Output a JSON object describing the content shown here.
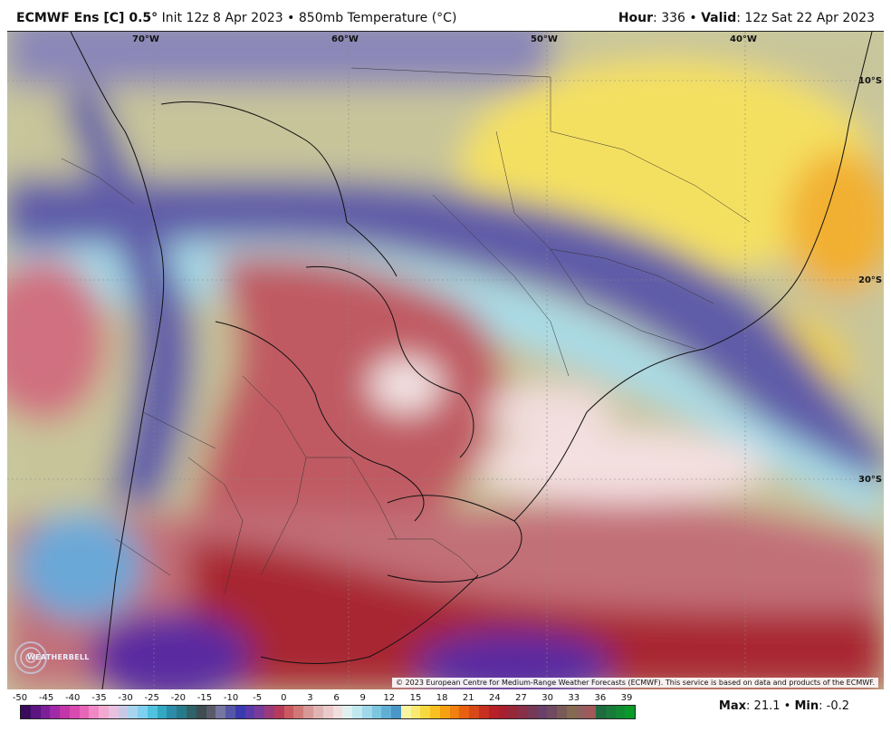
{
  "header": {
    "model": "ECMWF Ens [C] 0.5",
    "degree_symbol": "°",
    "init_text": "Init 12z 8 Apr 2023",
    "sep": "•",
    "field": "850mb Temperature (",
    "field_unit": "°C)",
    "hour_label": "Hour",
    "hour_value": ": 336",
    "valid_label": "Valid",
    "valid_value": ": 12z Sat 22 Apr 2023"
  },
  "map": {
    "lon_labels": [
      "70°W",
      "60°W",
      "50°W",
      "40°W"
    ],
    "lat_labels": [
      "10°S",
      "20°S",
      "30°S"
    ],
    "copyright": "© 2023 European Centre for Medium-Range Weather Forecasts (ECMWF). This service is based on data and products of the ECMWF.",
    "logo_text": "WEATHERBELL"
  },
  "colorbar": {
    "ticks": [
      "-50",
      "-45",
      "-40",
      "-35",
      "-30",
      "-25",
      "-20",
      "-15",
      "-10",
      "-5",
      "0",
      "3",
      "6",
      "9",
      "12",
      "15",
      "18",
      "21",
      "24",
      "27",
      "30",
      "33",
      "36",
      "39"
    ],
    "colors": [
      "#3a0a5e",
      "#5b1480",
      "#7d1f99",
      "#a12aa8",
      "#c336a8",
      "#d94ab0",
      "#e766b8",
      "#ef88c4",
      "#f3a8d2",
      "#e8c0e0",
      "#c9c9e6",
      "#a9d4ee",
      "#7fd0ee",
      "#4fc2e0",
      "#34a7c4",
      "#2c8ca8",
      "#277a8a",
      "#2f6268",
      "#3d4d52",
      "#5a5a6a",
      "#7676a0",
      "#5656a8",
      "#3a3ab0",
      "#5a3aa8",
      "#7a3a9a",
      "#9a3a7a",
      "#b83a5a",
      "#c85a60",
      "#d07878",
      "#d89898",
      "#e0b4b4",
      "#eacaca",
      "#f2dede",
      "#dff0f0",
      "#c0e8ee",
      "#9fd8e8",
      "#7ec6e0",
      "#60b0d6",
      "#4a96c8",
      "#f8f4a0",
      "#f8ea70",
      "#f8d840",
      "#f8c020",
      "#f4a010",
      "#f08010",
      "#e86010",
      "#d84818",
      "#c83020",
      "#b82028",
      "#a82030",
      "#982838",
      "#883048",
      "#783858",
      "#6a4068",
      "#704a60",
      "#7a5a58",
      "#846a50",
      "#906060",
      "#a05858",
      "#206a40",
      "#1a7a3a",
      "#128a32",
      "#0a9a2a"
    ],
    "max_label": "Max",
    "max_value": ": 21.1",
    "min_label": "Min",
    "min_value": ": -0.2",
    "sep": "•"
  }
}
